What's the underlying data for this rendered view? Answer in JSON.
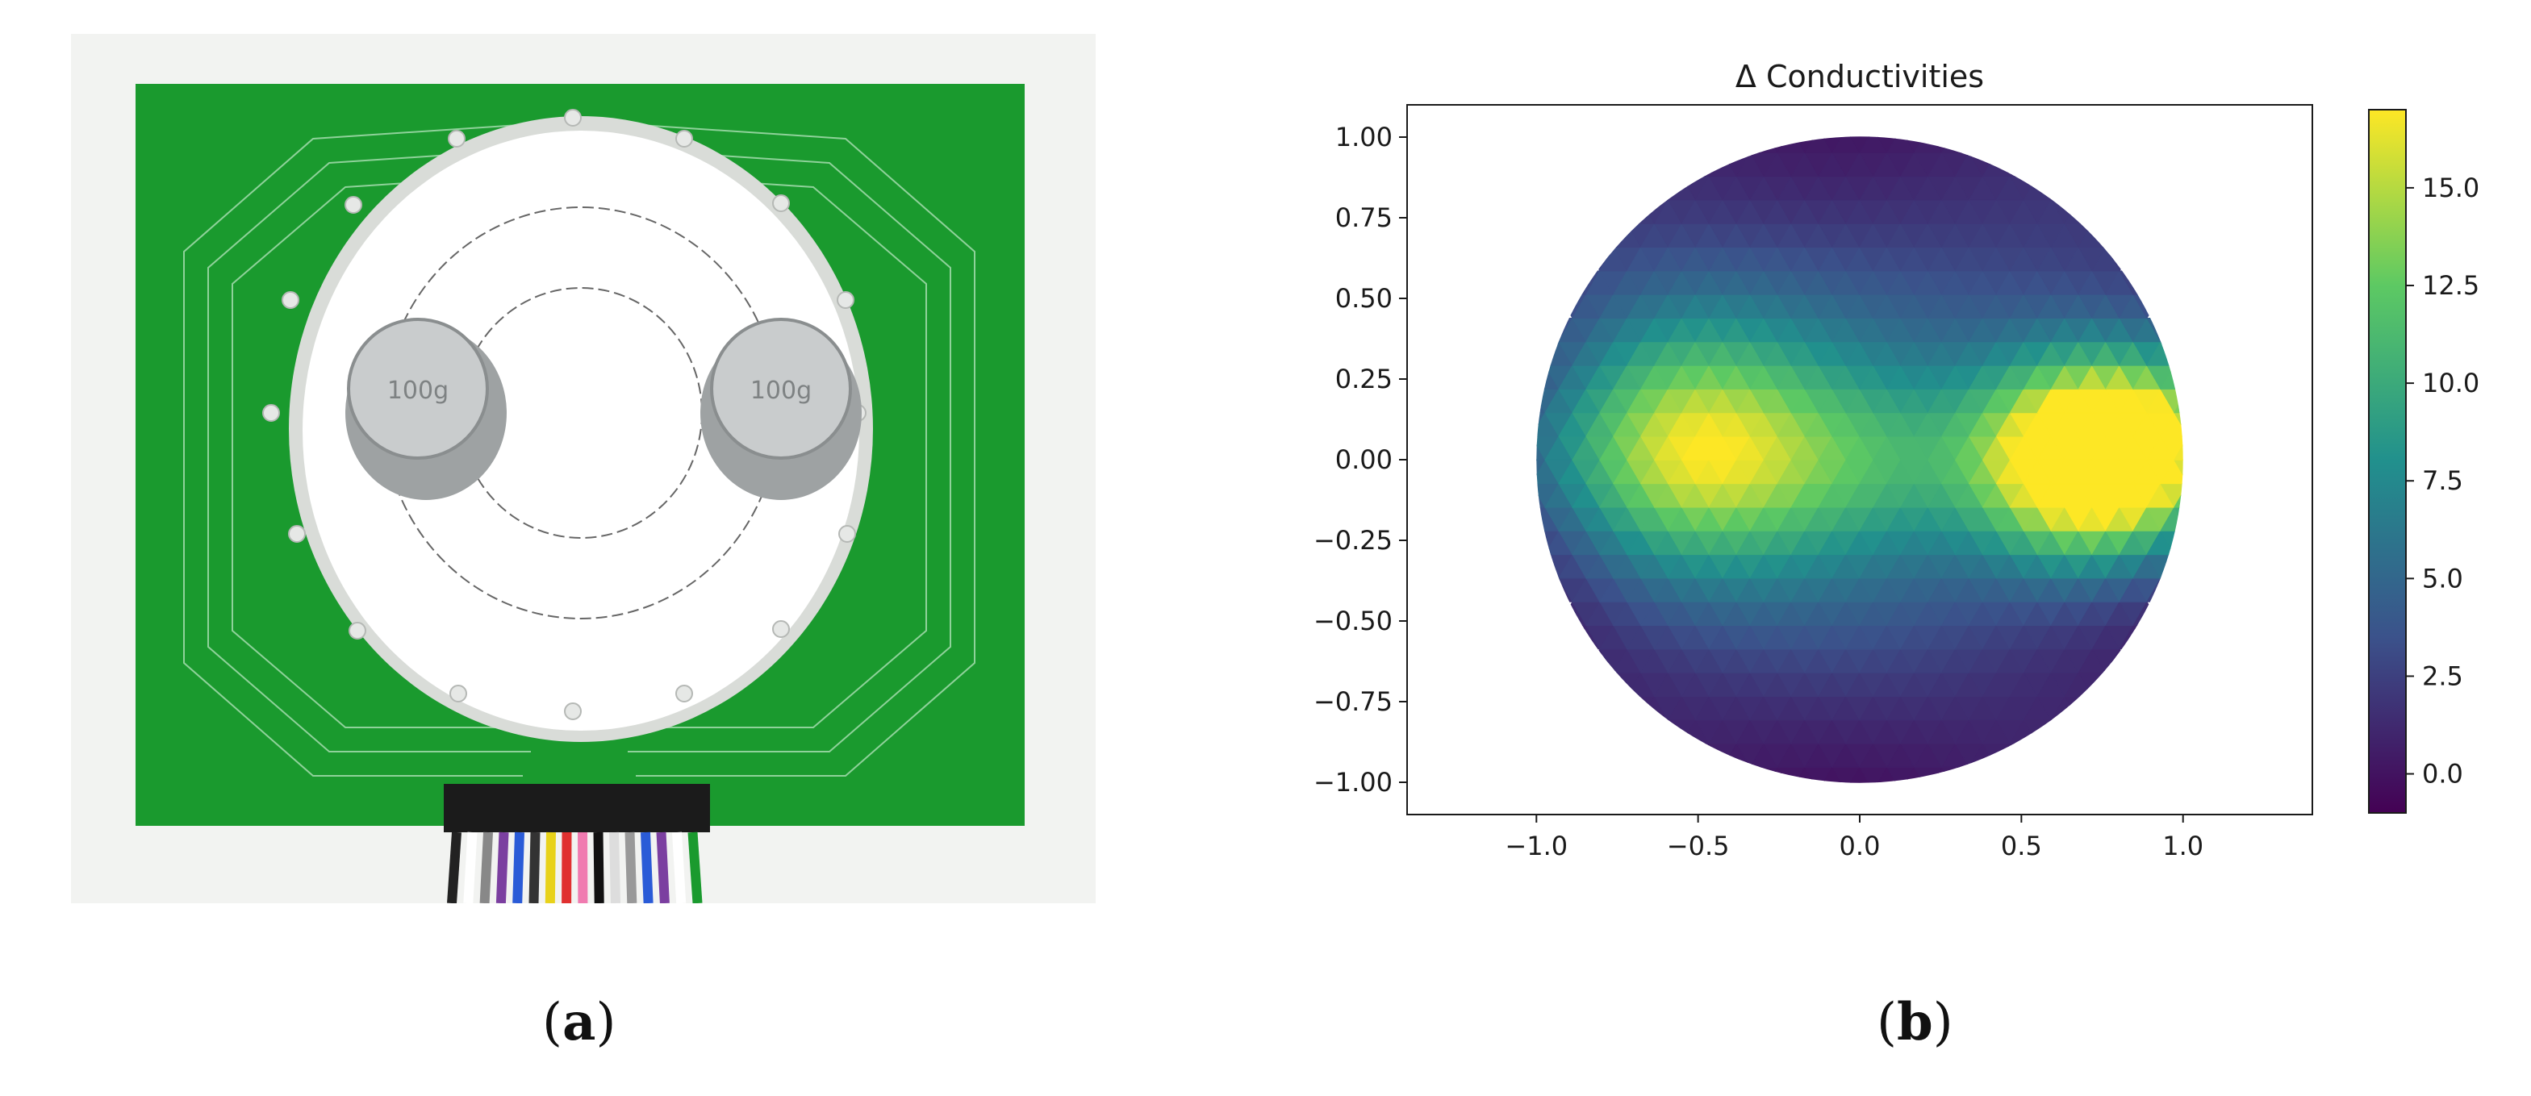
{
  "panels": {
    "a": {
      "caption_open": "(",
      "caption_letter": "a",
      "caption_close": ")",
      "photo": {
        "weight_left_label": "100g",
        "weight_right_label": "100g",
        "board_color": "#1a9a2e",
        "wire_colors": [
          "#222222",
          "#ffffff",
          "#888888",
          "#7b3fa0",
          "#2a5bd7",
          "#333333",
          "#e8d21a",
          "#e03030",
          "#f07bb0",
          "#111111",
          "#dddddd",
          "#999999",
          "#2a5bd7",
          "#7b3fa0",
          "#ffffff",
          "#1a9a2e"
        ]
      }
    },
    "b": {
      "caption_open": "(",
      "caption_letter": "b",
      "caption_close": ")"
    }
  },
  "chart_data": {
    "type": "heatmap",
    "title": "Δ Conductivities",
    "xlabel": "",
    "ylabel": "",
    "xlim": [
      -1.4,
      1.4
    ],
    "ylim": [
      -1.1,
      1.1
    ],
    "x_ticks": [
      -1.0,
      -0.5,
      0.0,
      0.5,
      1.0
    ],
    "y_ticks": [
      1.0,
      0.75,
      0.5,
      0.25,
      0.0,
      -0.25,
      -0.5,
      -0.75,
      -1.0
    ],
    "x_tick_labels": [
      "−1.0",
      "−0.5",
      "0.0",
      "0.5",
      "1.0"
    ],
    "y_tick_labels": [
      "1.00",
      "0.75",
      "0.50",
      "0.25",
      "0.00",
      "−0.25",
      "−0.50",
      "−0.75",
      "−1.00"
    ],
    "domain": "unit disk",
    "colormap": "viridis",
    "colorbar": {
      "range": [
        -1.0,
        17.0
      ],
      "ticks": [
        0.0,
        2.5,
        5.0,
        7.5,
        10.0,
        12.5,
        15.0
      ],
      "tick_labels": [
        "0.0",
        "2.5",
        "5.0",
        "7.5",
        "10.0",
        "12.5",
        "15.0"
      ]
    },
    "features": [
      {
        "x": 0.7,
        "y": 0.0,
        "peak": 17.0,
        "spread": 0.22
      },
      {
        "x": -0.55,
        "y": 0.05,
        "peak": 11.0,
        "spread": 0.3
      },
      {
        "x": 0.05,
        "y": 0.1,
        "peak": 5.0,
        "spread": 0.55
      },
      {
        "x": 0.95,
        "y": 0.05,
        "peak": 9.0,
        "spread": 0.2
      }
    ],
    "grid": false
  }
}
